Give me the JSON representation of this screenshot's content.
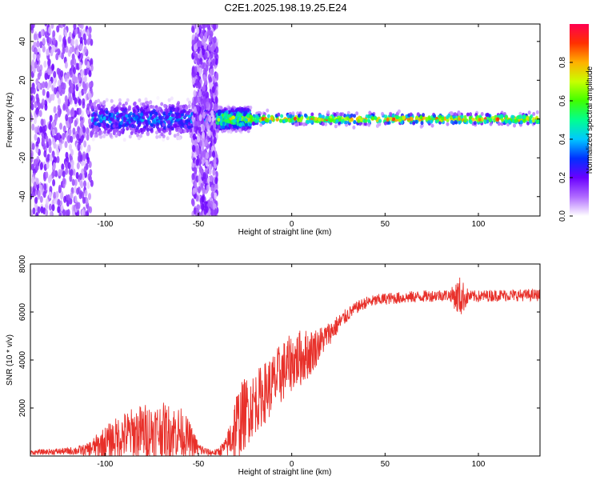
{
  "title": "C2E1.2025.198.19.25.E24",
  "chart_data": [
    {
      "type": "heatmap",
      "xlabel": "Height of straight line (km)",
      "ylabel": "Frequency (Hz)",
      "xlim": [
        -140,
        133
      ],
      "ylim": [
        -50,
        49
      ],
      "x_ticks": [
        "-100",
        "-50",
        "0",
        "50",
        "100"
      ],
      "y_ticks": [
        "-40",
        "-20",
        "0",
        "20",
        "40"
      ],
      "colorbar": {
        "label": "Normalized spectral amplitude",
        "range": [
          0,
          1
        ],
        "ticks": [
          "0.0",
          "0.2",
          "0.4",
          "0.6",
          "0.8"
        ],
        "colors": [
          "#ffffff",
          "#b06bff",
          "#6a00ff",
          "#0030ff",
          "#00c8ff",
          "#00ff90",
          "#40ff00",
          "#c8ff00",
          "#ffb000",
          "#ff3000",
          "#ff0050"
        ]
      },
      "regions": [
        {
          "x": [
            -140,
            -107
          ],
          "freq_half_width": 50,
          "peak_amplitude": 0.2,
          "pattern": "broadband noise"
        },
        {
          "x": [
            -107,
            -40
          ],
          "freq_half_width": 8,
          "peak_amplitude": 0.45,
          "pattern": "noisy band"
        },
        {
          "x": [
            -53,
            -40
          ],
          "freq_half_width": 50,
          "peak_amplitude": 0.2,
          "pattern": "broadband noise"
        },
        {
          "x": [
            -40,
            -22
          ],
          "freq_half_width": 5,
          "peak_amplitude": 0.85,
          "pattern": "narrowing band"
        },
        {
          "x": [
            -22,
            133
          ],
          "freq_half_width": 3,
          "peak_amplitude": 1.0,
          "pattern": "narrow carrier at 0 Hz"
        }
      ]
    },
    {
      "type": "line",
      "xlabel": "Height of straight line (km)",
      "ylabel": "SNR (10 * v/v)",
      "xlim": [
        -140,
        133
      ],
      "ylim": [
        0,
        8000
      ],
      "x_ticks": [
        "-100",
        "-50",
        "0",
        "50",
        "100"
      ],
      "y_ticks": [
        "2000",
        "4000",
        "6000",
        "8000"
      ],
      "color": "#e8302a",
      "series": [
        {
          "x": [
            -140,
            -120,
            -110,
            -100,
            -90,
            -80,
            -70,
            -60,
            -55,
            -50,
            -45,
            -40,
            -35,
            -30,
            -25,
            -20,
            -15,
            -10,
            -5,
            0,
            5,
            10,
            15,
            20,
            25,
            30,
            35,
            40,
            50,
            60,
            70,
            80,
            85,
            90,
            95,
            100,
            110,
            120,
            133
          ],
          "y": [
            150,
            200,
            250,
            550,
            850,
            1000,
            1050,
            1000,
            700,
            300,
            150,
            150,
            400,
            1200,
            1800,
            2200,
            2600,
            3000,
            3500,
            3900,
            4100,
            4300,
            4700,
            5100,
            5500,
            5900,
            6200,
            6400,
            6550,
            6600,
            6650,
            6700,
            6700,
            6600,
            6650,
            6650,
            6700,
            6700,
            6700
          ],
          "noise": [
            100,
            150,
            250,
            700,
            1000,
            1200,
            1200,
            1100,
            800,
            300,
            150,
            150,
            400,
            1600,
            1500,
            1300,
            1300,
            1300,
            1300,
            1200,
            1200,
            1000,
            700,
            500,
            400,
            300,
            250,
            250,
            250,
            250,
            250,
            250,
            250,
            900,
            250,
            250,
            250,
            250,
            250
          ]
        }
      ]
    }
  ]
}
